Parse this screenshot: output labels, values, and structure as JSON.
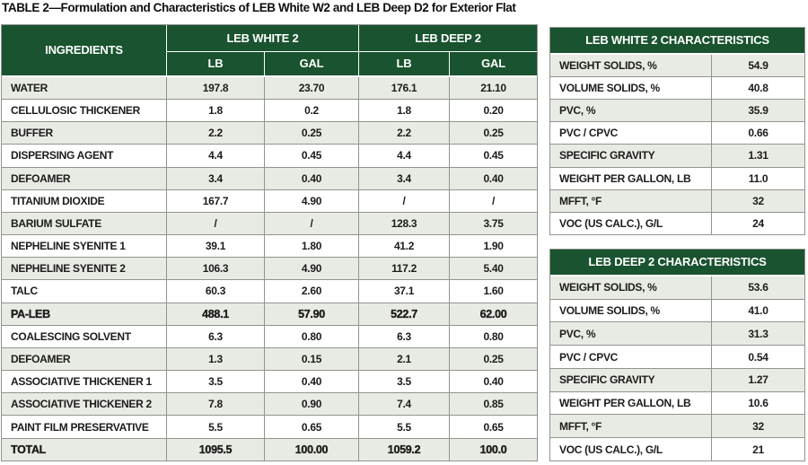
{
  "title": "TABLE 2—Formulation and Characteristics of LEB White W2 and LEB Deep D2 for Exterior Flat",
  "colors": {
    "header_green": "#1a532f",
    "header_text": "#ffffff",
    "shaded_row": "#e8ebe3",
    "border_gray": "#8f958f",
    "body_text": "#1c1c1c"
  },
  "formulation_table": {
    "ingredients_header": "INGREDIENTS",
    "group_headers": [
      "LEB WHITE 2",
      "LEB DEEP 2"
    ],
    "unit_headers": [
      "LB",
      "GAL",
      "LB",
      "GAL"
    ],
    "rows": [
      {
        "ingredient": "WATER",
        "values": [
          "197.8",
          "23.70",
          "176.1",
          "21.10"
        ],
        "bold": false
      },
      {
        "ingredient": "CELLULOSIC THICKENER",
        "values": [
          "1.8",
          "0.2",
          "1.8",
          "0.20"
        ],
        "bold": false
      },
      {
        "ingredient": "BUFFER",
        "values": [
          "2.2",
          "0.25",
          "2.2",
          "0.25"
        ],
        "bold": false
      },
      {
        "ingredient": "DISPERSING AGENT",
        "values": [
          "4.4",
          "0.45",
          "4.4",
          "0.45"
        ],
        "bold": false
      },
      {
        "ingredient": "DEFOAMER",
        "values": [
          "3.4",
          "0.40",
          "3.4",
          "0.40"
        ],
        "bold": false
      },
      {
        "ingredient": "TITANIUM DIOXIDE",
        "values": [
          "167.7",
          "4.90",
          "/",
          "/"
        ],
        "bold": false
      },
      {
        "ingredient": "BARIUM SULFATE",
        "values": [
          "/",
          "/",
          "128.3",
          "3.75"
        ],
        "bold": false
      },
      {
        "ingredient": "NEPHELINE SYENITE 1",
        "values": [
          "39.1",
          "1.80",
          "41.2",
          "1.90"
        ],
        "bold": false
      },
      {
        "ingredient": "NEPHELINE SYENITE 2",
        "values": [
          "106.3",
          "4.90",
          "117.2",
          "5.40"
        ],
        "bold": false
      },
      {
        "ingredient": "TALC",
        "values": [
          "60.3",
          "2.60",
          "37.1",
          "1.60"
        ],
        "bold": false
      },
      {
        "ingredient": "PA-LEB",
        "values": [
          "488.1",
          "57.90",
          "522.7",
          "62.00"
        ],
        "bold": true
      },
      {
        "ingredient": "COALESCING SOLVENT",
        "values": [
          "6.3",
          "0.80",
          "6.3",
          "0.80"
        ],
        "bold": false
      },
      {
        "ingredient": "DEFOAMER",
        "values": [
          "1.3",
          "0.15",
          "2.1",
          "0.25"
        ],
        "bold": false
      },
      {
        "ingredient": "ASSOCIATIVE THICKENER 1",
        "values": [
          "3.5",
          "0.40",
          "3.5",
          "0.40"
        ],
        "bold": false
      },
      {
        "ingredient": "ASSOCIATIVE THICKENER 2",
        "values": [
          "7.8",
          "0.90",
          "7.4",
          "0.85"
        ],
        "bold": false
      },
      {
        "ingredient": "PAINT FILM PRESERVATIVE",
        "values": [
          "5.5",
          "0.65",
          "5.5",
          "0.65"
        ],
        "bold": false
      },
      {
        "ingredient": "TOTAL",
        "values": [
          "1095.5",
          "100.00",
          "1059.2",
          "100.0"
        ],
        "bold": true
      }
    ]
  },
  "white_characteristics": {
    "title": "LEB WHITE 2 CHARACTERISTICS",
    "rows": [
      {
        "label": "WEIGHT SOLIDS, %",
        "value": "54.9"
      },
      {
        "label": "VOLUME SOLIDS, %",
        "value": "40.8"
      },
      {
        "label": "PVC, %",
        "value": "35.9"
      },
      {
        "label": "PVC / CPVC",
        "value": "0.66"
      },
      {
        "label": "SPECIFIC GRAVITY",
        "value": "1.31"
      },
      {
        "label": "WEIGHT PER GALLON, LB",
        "value": "11.0"
      },
      {
        "label": "MFFT, °F",
        "value": "32"
      },
      {
        "label": "VOC (US CALC.), G/L",
        "value": "24"
      }
    ]
  },
  "deep_characteristics": {
    "title": "LEB DEEP 2 CHARACTERISTICS",
    "rows": [
      {
        "label": "WEIGHT SOLIDS, %",
        "value": "53.6"
      },
      {
        "label": "VOLUME SOLIDS, %",
        "value": "41.0"
      },
      {
        "label": "PVC, %",
        "value": "31.3"
      },
      {
        "label": "PVC / CPVC",
        "value": "0.54"
      },
      {
        "label": "SPECIFIC GRAVITY",
        "value": "1.27"
      },
      {
        "label": "WEIGHT PER GALLON, LB",
        "value": "10.6"
      },
      {
        "label": "MFFT, °F",
        "value": "32"
      },
      {
        "label": "VOC (US CALC.), G/L",
        "value": "21"
      }
    ]
  }
}
